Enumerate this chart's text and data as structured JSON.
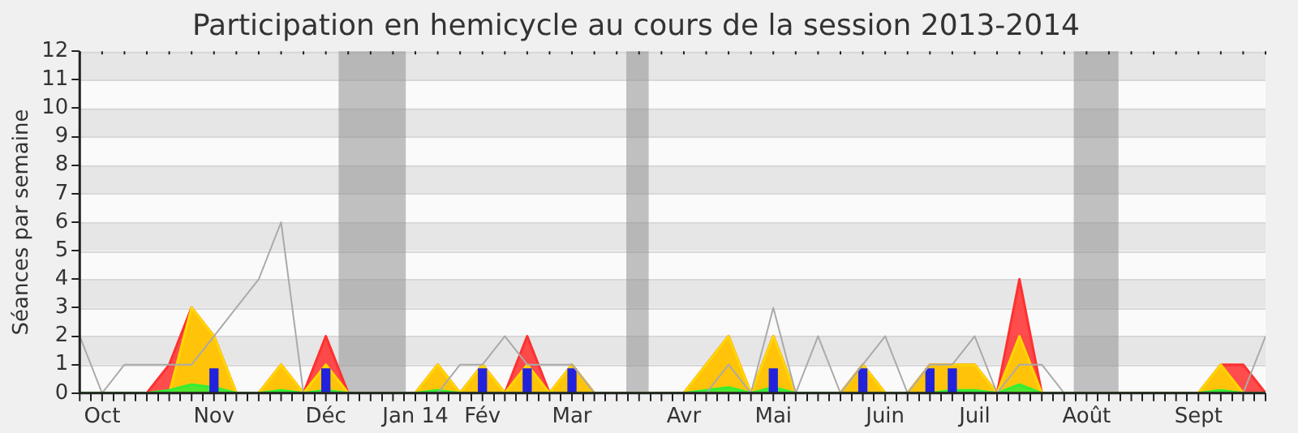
{
  "chart_data": {
    "type": "area",
    "title": "Participation en hemicycle au cours de la session 2013-2014",
    "ylabel": "Séances par semaine",
    "x": [
      "2013-09-30",
      "2013-10-07",
      "2013-10-14",
      "2013-10-21",
      "2013-10-28",
      "2013-11-04",
      "2013-11-11",
      "2013-11-18",
      "2013-11-25",
      "2013-12-02",
      "2013-12-09",
      "2013-12-16",
      "2013-12-23",
      "2013-12-30",
      "2014-01-06",
      "2014-01-13",
      "2014-01-20",
      "2014-01-27",
      "2014-02-03",
      "2014-02-10",
      "2014-02-17",
      "2014-02-24",
      "2014-03-03",
      "2014-03-10",
      "2014-03-17",
      "2014-03-24",
      "2014-03-31",
      "2014-04-07",
      "2014-04-14",
      "2014-04-21",
      "2014-04-28",
      "2014-05-05",
      "2014-05-12",
      "2014-05-19",
      "2014-05-26",
      "2014-06-02",
      "2014-06-09",
      "2014-06-16",
      "2014-06-23",
      "2014-06-30",
      "2014-07-07",
      "2014-07-14",
      "2014-07-21",
      "2014-07-28",
      "2014-08-04",
      "2014-08-11",
      "2014-08-18",
      "2014-08-25",
      "2014-09-01",
      "2014-09-08",
      "2014-09-15",
      "2014-09-22",
      "2014-09-29",
      "2014-10-06"
    ],
    "xlim": [
      "2013-09-30",
      "2014-10-06"
    ],
    "xticks": [
      {
        "value": "2013-09-30",
        "label": null
      },
      {
        "value": "2013-10-07",
        "label": "Oct"
      },
      {
        "value": "2013-10-14",
        "label": null
      },
      {
        "value": "2013-10-21",
        "label": null
      },
      {
        "value": "2013-10-28",
        "label": null
      },
      {
        "value": "2013-11-04",
        "label": null
      },
      {
        "value": "2013-11-11",
        "label": "Nov"
      },
      {
        "value": "2013-11-18",
        "label": null
      },
      {
        "value": "2013-11-25",
        "label": null
      },
      {
        "value": "2013-12-02",
        "label": null
      },
      {
        "value": "2013-12-09",
        "label": null
      },
      {
        "value": "2013-12-16",
        "label": "Déc"
      },
      {
        "value": "2013-12-23",
        "label": null
      },
      {
        "value": "2013-12-30",
        "label": null
      },
      {
        "value": "2014-01-06",
        "label": null
      },
      {
        "value": "2014-01-13",
        "label": "Jan 14"
      },
      {
        "value": "2014-01-20",
        "label": null
      },
      {
        "value": "2014-01-27",
        "label": null
      },
      {
        "value": "2014-02-03",
        "label": "Fév"
      },
      {
        "value": "2014-02-10",
        "label": null
      },
      {
        "value": "2014-02-17",
        "label": null
      },
      {
        "value": "2014-02-24",
        "label": null
      },
      {
        "value": "2014-03-03",
        "label": "Mar"
      },
      {
        "value": "2014-03-10",
        "label": null
      },
      {
        "value": "2014-03-17",
        "label": null
      },
      {
        "value": "2014-03-24",
        "label": null
      },
      {
        "value": "2014-03-31",
        "label": null
      },
      {
        "value": "2014-04-07",
        "label": "Avr"
      },
      {
        "value": "2014-04-14",
        "label": null
      },
      {
        "value": "2014-04-21",
        "label": null
      },
      {
        "value": "2014-04-28",
        "label": null
      },
      {
        "value": "2014-05-05",
        "label": "Mai"
      },
      {
        "value": "2014-05-12",
        "label": null
      },
      {
        "value": "2014-05-19",
        "label": null
      },
      {
        "value": "2014-05-26",
        "label": null
      },
      {
        "value": "2014-06-02",
        "label": null
      },
      {
        "value": "2014-06-09",
        "label": "Juin"
      },
      {
        "value": "2014-06-16",
        "label": null
      },
      {
        "value": "2014-06-23",
        "label": null
      },
      {
        "value": "2014-06-30",
        "label": null
      },
      {
        "value": "2014-07-07",
        "label": "Juil"
      },
      {
        "value": "2014-07-14",
        "label": null
      },
      {
        "value": "2014-07-21",
        "label": null
      },
      {
        "value": "2014-07-28",
        "label": null
      },
      {
        "value": "2014-08-04",
        "label": null
      },
      {
        "value": "2014-08-11",
        "label": "Août"
      },
      {
        "value": "2014-08-18",
        "label": null
      },
      {
        "value": "2014-08-25",
        "label": null
      },
      {
        "value": "2014-09-01",
        "label": null
      },
      {
        "value": "2014-09-08",
        "label": null
      },
      {
        "value": "2014-09-15",
        "label": "Sept"
      },
      {
        "value": "2014-09-22",
        "label": null
      },
      {
        "value": "2014-09-29",
        "label": null
      },
      {
        "value": "2014-10-06",
        "label": null
      }
    ],
    "ylim": [
      0,
      12
    ],
    "yticks": [
      0,
      1,
      2,
      3,
      4,
      5,
      6,
      7,
      8,
      9,
      10,
      11,
      12
    ],
    "grid": true,
    "bands": [
      {
        "axis": "x",
        "from": "2013-12-20",
        "to": "2014-01-10",
        "color": "#909090"
      },
      {
        "axis": "x",
        "from": "2014-03-20",
        "to": "2014-03-27",
        "color": "#909090"
      },
      {
        "axis": "x",
        "from": "2014-08-07",
        "to": "2014-08-21",
        "color": "#909090"
      }
    ],
    "series": [
      {
        "color": "#ff3030",
        "values": [
          0,
          0,
          0,
          0,
          1,
          3,
          2,
          0,
          0,
          1,
          0,
          2,
          0,
          0,
          0,
          0,
          1,
          0,
          1,
          0,
          2,
          0,
          1,
          0,
          0,
          0,
          0,
          0,
          1,
          2,
          0,
          2,
          0,
          0,
          0,
          1,
          0,
          0,
          1,
          1,
          1,
          0,
          4,
          0,
          0,
          0,
          0,
          0,
          0,
          0,
          0,
          1,
          1,
          0
        ]
      },
      {
        "color": "#ffd700",
        "values": [
          0,
          0,
          0,
          0,
          0,
          3,
          2,
          0,
          0,
          1,
          0,
          1,
          0,
          0,
          0,
          0,
          1,
          0,
          1,
          0,
          1,
          0,
          1,
          0,
          0,
          0,
          0,
          0,
          1,
          2,
          0,
          2,
          0,
          0,
          0,
          1,
          0,
          0,
          1,
          1,
          1,
          0,
          2,
          0,
          0,
          0,
          0,
          0,
          0,
          0,
          0,
          1,
          0,
          0
        ]
      },
      {
        "color": "#33ee33",
        "values": [
          0,
          0,
          0,
          0,
          0.1,
          0.3,
          0.2,
          0,
          0,
          0.1,
          0,
          0.1,
          0,
          0,
          0,
          0,
          0.1,
          0,
          0,
          0,
          0,
          0,
          0,
          0,
          0,
          0,
          0,
          0,
          0.1,
          0.2,
          0,
          0.2,
          0,
          0,
          0,
          0,
          0,
          0,
          0,
          0.1,
          0.1,
          0,
          0.3,
          0,
          0,
          0,
          0,
          0,
          0,
          0,
          0,
          0.1,
          0,
          0
        ]
      },
      {
        "type": "bar",
        "color": "#2222dd",
        "values": [
          null,
          null,
          null,
          null,
          null,
          null,
          0.85,
          null,
          null,
          null,
          null,
          0.85,
          null,
          null,
          null,
          null,
          null,
          null,
          0.85,
          null,
          0.85,
          null,
          0.85,
          null,
          null,
          null,
          null,
          null,
          null,
          null,
          null,
          0.85,
          null,
          null,
          null,
          0.85,
          null,
          null,
          0.85,
          0.85,
          null,
          null,
          null,
          null,
          null,
          null,
          null,
          null,
          null,
          null,
          null,
          null,
          null,
          null
        ]
      },
      {
        "type": "line",
        "color": "#aaaaaa",
        "values": [
          2,
          0,
          1,
          1,
          1,
          1,
          2,
          3,
          4,
          6,
          0,
          0,
          0,
          0,
          0,
          0,
          0,
          1,
          1,
          2,
          1,
          1,
          1,
          0,
          0,
          0,
          0,
          0,
          0,
          1,
          0,
          3,
          0,
          2,
          0,
          1,
          2,
          0,
          1,
          1,
          2,
          0,
          1,
          1,
          0,
          0,
          0,
          0,
          0,
          0,
          0,
          0,
          0,
          2
        ]
      }
    ]
  }
}
